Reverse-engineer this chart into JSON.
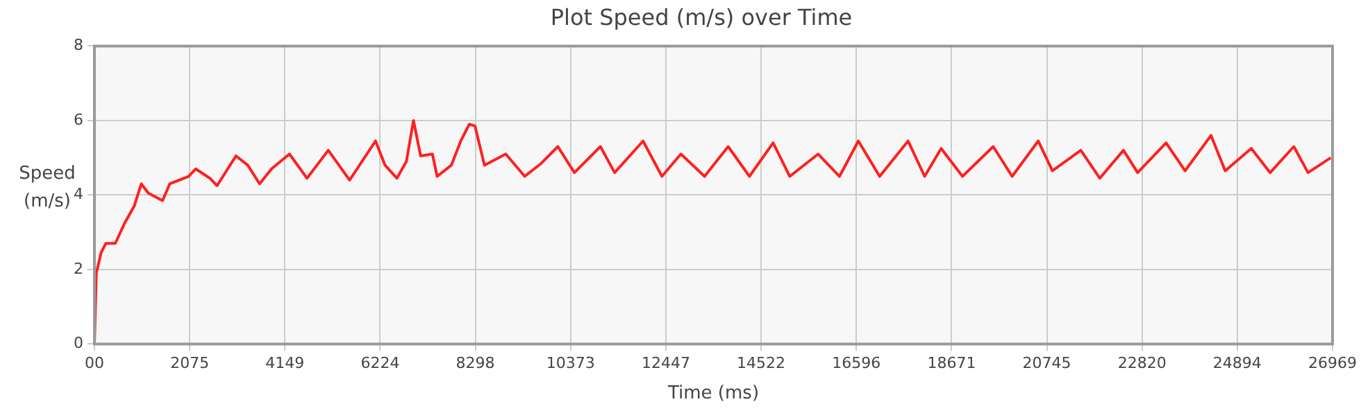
{
  "chart_data": {
    "type": "line",
    "title": "Plot Speed (m/s) over Time",
    "xlabel": "Time (ms)",
    "ylabel": "Speed (m/s)",
    "xlim": [
      0,
      26969
    ],
    "ylim": [
      0,
      8
    ],
    "xticks": [
      {
        "value": 0,
        "label": "00"
      },
      2075,
      4149,
      6224,
      8298,
      10373,
      12447,
      14522,
      16596,
      18671,
      20745,
      22820,
      24894,
      26969
    ],
    "yticks": [
      0,
      2,
      4,
      6,
      8
    ],
    "grid": true,
    "legend": false,
    "marker": "none",
    "line_style": "solid",
    "series": [
      {
        "color": "#ff2020",
        "x": [
          0,
          40,
          145,
          247,
          454,
          660,
          866,
          1020,
          1175,
          1485,
          1640,
          2050,
          2205,
          2515,
          2670,
          3083,
          3340,
          3598,
          3856,
          4248,
          4630,
          5094,
          5558,
          6124,
          6330,
          6588,
          6795,
          6950,
          7105,
          7362,
          7465,
          7774,
          7980,
          8166,
          8290,
          8496,
          8960,
          9372,
          9733,
          10094,
          10455,
          11022,
          11331,
          11950,
          12362,
          12774,
          13290,
          13804,
          14268,
          14784,
          15146,
          15765,
          16229,
          16640,
          17104,
          17723,
          18084,
          18444,
          18908,
          19578,
          19990,
          20558,
          20867,
          21486,
          21899,
          22415,
          22724,
          23343,
          23756,
          24322,
          24631,
          25199,
          25610,
          26126,
          26435,
          26930
        ],
        "values": [
          0,
          1.9,
          2.45,
          2.7,
          2.7,
          3.25,
          3.7,
          4.3,
          4.05,
          3.85,
          4.3,
          4.5,
          4.7,
          4.45,
          4.25,
          5.05,
          4.8,
          4.3,
          4.7,
          5.1,
          4.45,
          5.2,
          4.4,
          5.45,
          4.8,
          4.45,
          4.9,
          6.0,
          5.05,
          5.1,
          4.5,
          4.8,
          5.45,
          5.9,
          5.85,
          4.8,
          5.1,
          4.5,
          4.85,
          5.3,
          4.6,
          5.3,
          4.6,
          5.45,
          4.5,
          5.1,
          4.5,
          5.3,
          4.5,
          5.4,
          4.5,
          5.1,
          4.5,
          5.45,
          4.5,
          5.45,
          4.5,
          5.25,
          4.5,
          5.3,
          4.5,
          5.45,
          4.65,
          5.2,
          4.45,
          5.2,
          4.6,
          5.4,
          4.65,
          5.6,
          4.65,
          5.25,
          4.6,
          5.3,
          4.6,
          5.0
        ]
      }
    ]
  }
}
